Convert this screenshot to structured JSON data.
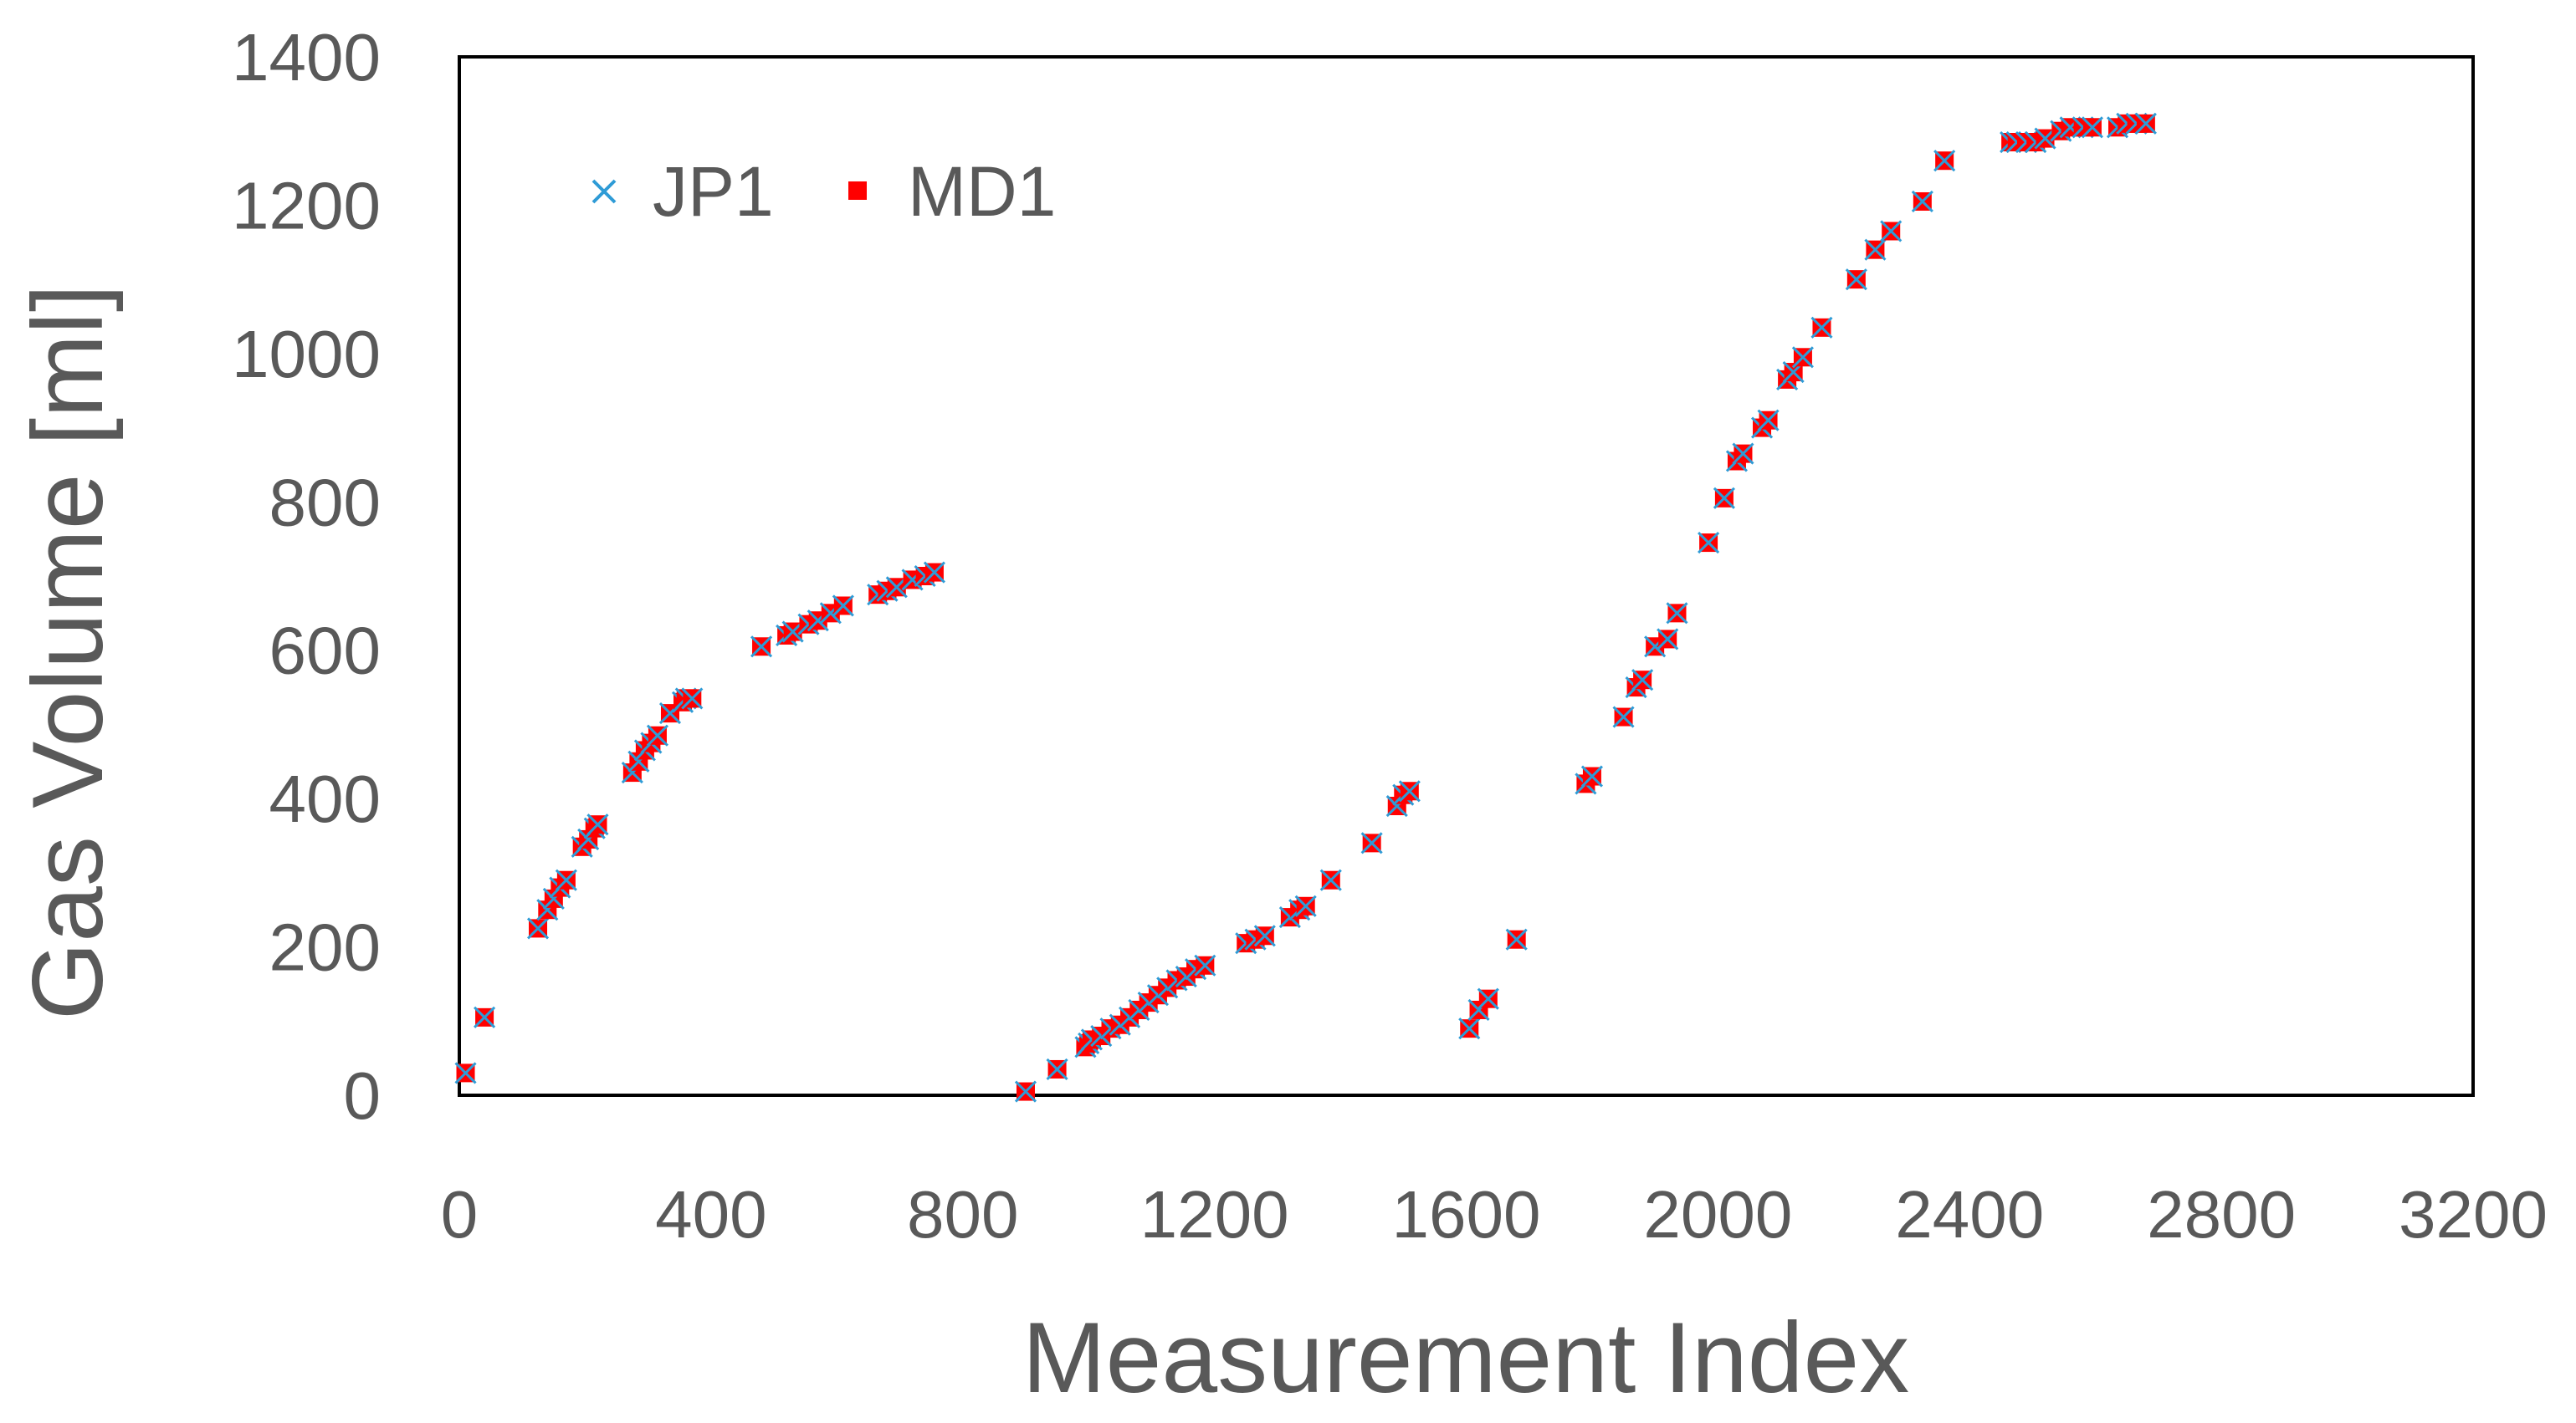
{
  "chart_data": {
    "type": "scatter",
    "title": "",
    "xlabel": "Measurement Index",
    "ylabel": "Gas Volume [ml]",
    "xlim": [
      0,
      3200
    ],
    "ylim": [
      0,
      1400
    ],
    "xticks": [
      "0",
      "400",
      "800",
      "1200",
      "1600",
      "2000",
      "2400",
      "2800",
      "3200"
    ],
    "yticks": [
      "0",
      "200",
      "400",
      "600",
      "800",
      "1000",
      "1200",
      "1400"
    ],
    "grid": false,
    "legend_position": "top-left",
    "series": [
      {
        "name": "JP1",
        "marker": "x",
        "color": "#2E9BD6"
      },
      {
        "name": "MD1",
        "marker": "square",
        "color": "#FF0000"
      }
    ],
    "points": [
      [
        10,
        30
      ],
      [
        40,
        105
      ],
      [
        125,
        225
      ],
      [
        140,
        250
      ],
      [
        150,
        265
      ],
      [
        160,
        280
      ],
      [
        170,
        290
      ],
      [
        195,
        335
      ],
      [
        205,
        345
      ],
      [
        215,
        360
      ],
      [
        220,
        365
      ],
      [
        275,
        435
      ],
      [
        285,
        450
      ],
      [
        295,
        465
      ],
      [
        305,
        475
      ],
      [
        315,
        485
      ],
      [
        335,
        515
      ],
      [
        355,
        530
      ],
      [
        360,
        535
      ],
      [
        370,
        535
      ],
      [
        480,
        605
      ],
      [
        520,
        620
      ],
      [
        530,
        625
      ],
      [
        555,
        635
      ],
      [
        570,
        640
      ],
      [
        590,
        650
      ],
      [
        610,
        660
      ],
      [
        665,
        675
      ],
      [
        680,
        680
      ],
      [
        695,
        685
      ],
      [
        720,
        695
      ],
      [
        740,
        700
      ],
      [
        755,
        705
      ],
      [
        900,
        5
      ],
      [
        950,
        35
      ],
      [
        995,
        65
      ],
      [
        1000,
        70
      ],
      [
        1005,
        75
      ],
      [
        1020,
        80
      ],
      [
        1035,
        90
      ],
      [
        1050,
        95
      ],
      [
        1065,
        105
      ],
      [
        1080,
        115
      ],
      [
        1095,
        125
      ],
      [
        1110,
        135
      ],
      [
        1125,
        145
      ],
      [
        1140,
        155
      ],
      [
        1155,
        160
      ],
      [
        1170,
        170
      ],
      [
        1185,
        175
      ],
      [
        1250,
        205
      ],
      [
        1265,
        210
      ],
      [
        1280,
        215
      ],
      [
        1320,
        240
      ],
      [
        1335,
        250
      ],
      [
        1345,
        255
      ],
      [
        1385,
        290
      ],
      [
        1450,
        340
      ],
      [
        1490,
        390
      ],
      [
        1500,
        405
      ],
      [
        1510,
        410
      ],
      [
        1605,
        90
      ],
      [
        1620,
        115
      ],
      [
        1635,
        130
      ],
      [
        1680,
        210
      ],
      [
        1790,
        420
      ],
      [
        1800,
        430
      ],
      [
        1850,
        510
      ],
      [
        1870,
        550
      ],
      [
        1880,
        560
      ],
      [
        1900,
        605
      ],
      [
        1920,
        615
      ],
      [
        1935,
        650
      ],
      [
        1985,
        745
      ],
      [
        2010,
        805
      ],
      [
        2030,
        855
      ],
      [
        2040,
        865
      ],
      [
        2070,
        900
      ],
      [
        2080,
        910
      ],
      [
        2110,
        965
      ],
      [
        2120,
        975
      ],
      [
        2135,
        995
      ],
      [
        2165,
        1035
      ],
      [
        2220,
        1100
      ],
      [
        2250,
        1140
      ],
      [
        2275,
        1165
      ],
      [
        2325,
        1205
      ],
      [
        2360,
        1260
      ],
      [
        2465,
        1285
      ],
      [
        2475,
        1285
      ],
      [
        2490,
        1285
      ],
      [
        2505,
        1285
      ],
      [
        2520,
        1290
      ],
      [
        2545,
        1300
      ],
      [
        2560,
        1305
      ],
      [
        2580,
        1305
      ],
      [
        2595,
        1305
      ],
      [
        2635,
        1305
      ],
      [
        2650,
        1310
      ],
      [
        2665,
        1310
      ],
      [
        2680,
        1310
      ]
    ]
  }
}
